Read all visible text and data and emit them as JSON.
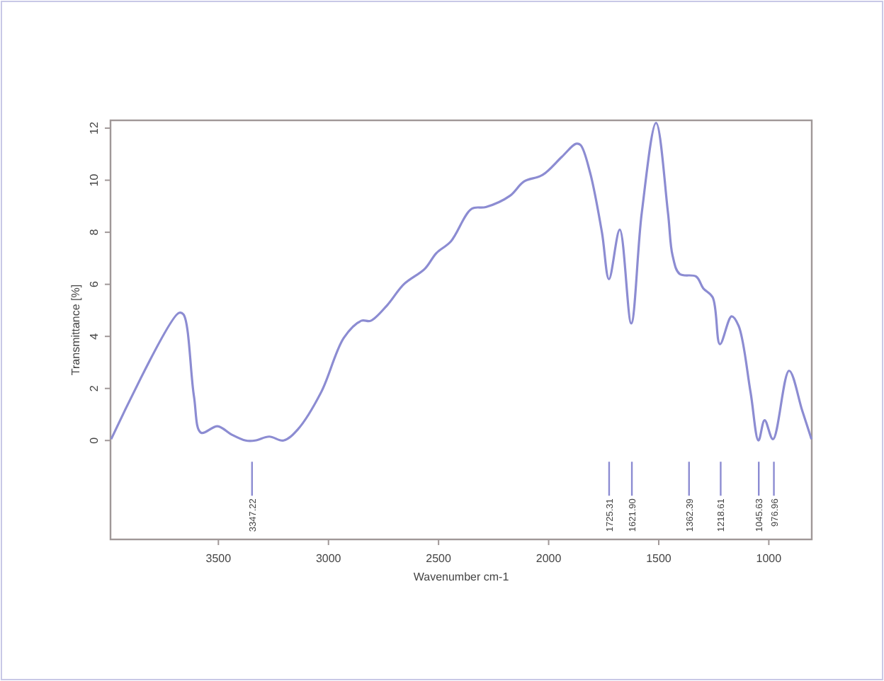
{
  "chart_data": {
    "type": "line",
    "xlabel": "Wavenumber cm-1",
    "ylabel": "Transmittance [%]",
    "x": [
      3987,
      3680,
      3659,
      3611,
      3579,
      3504,
      3440,
      3376,
      3333,
      3269,
      3204,
      3140,
      3033,
      2930,
      2851,
      2808,
      2733,
      2658,
      2562,
      2510,
      2444,
      2350,
      2285,
      2176,
      2112,
      2028,
      1940,
      1876,
      1855,
      1812,
      1758,
      1726,
      1677,
      1625,
      1577,
      1512,
      1458,
      1437,
      1405,
      1330,
      1298,
      1255,
      1222,
      1169,
      1137,
      1083,
      1047,
      1019,
      981,
      908,
      848,
      806
    ],
    "series": [
      {
        "color": "#8c8cd2",
        "values": [
          0.05,
          4.9,
          4.85,
          1.7,
          0.3,
          0.55,
          0.23,
          0,
          0,
          0.15,
          0,
          0.42,
          1.86,
          3.95,
          4.6,
          4.6,
          5.2,
          6.0,
          6.6,
          7.2,
          7.65,
          8.9,
          8.97,
          9.4,
          9.95,
          10.2,
          10.9,
          11.4,
          11.35,
          10.3,
          8.0,
          6.2,
          8.1,
          4.5,
          8.75,
          12.2,
          8.75,
          7.1,
          6.4,
          6.3,
          5.85,
          5.5,
          3.7,
          4.77,
          4.4,
          1.86,
          0,
          0.78,
          0.05,
          2.68,
          1.14,
          0.05
        ]
      }
    ],
    "xlim": [
      3990,
      805
    ],
    "ylim": [
      -3.8,
      12.3
    ],
    "xticks": [
      3500,
      3000,
      2500,
      2000,
      1500,
      1000
    ],
    "yticks": [
      0,
      2,
      4,
      6,
      8,
      10,
      12
    ],
    "ref_lines": [
      {
        "axis": "x",
        "value": 3347.22,
        "label": "3347.22"
      },
      {
        "axis": "x",
        "value": 1725.31,
        "label": "1725.31"
      },
      {
        "axis": "x",
        "value": 1621.9,
        "label": "1621.90"
      },
      {
        "axis": "x",
        "value": 1362.39,
        "label": "1362.39"
      },
      {
        "axis": "x",
        "value": 1218.61,
        "label": "1218.61"
      },
      {
        "axis": "x",
        "value": 1045.63,
        "label": "1045.63"
      },
      {
        "axis": "x",
        "value": 976.96,
        "label": "976.96"
      }
    ],
    "grid": false,
    "marker": "none",
    "line_style": "solid"
  }
}
